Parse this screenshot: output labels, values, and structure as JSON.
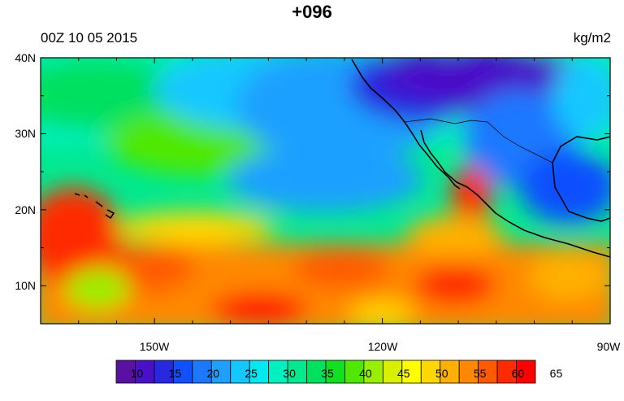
{
  "title": "+096",
  "valid_time": "00Z 10 05 2015",
  "units": "kg/m2",
  "lat_labels": [
    "40N",
    "30N",
    "20N",
    "10N"
  ],
  "lon_labels": [
    "150W",
    "120W",
    "90W"
  ],
  "colorbar": {
    "labels": [
      "10",
      "15",
      "20",
      "25",
      "30",
      "35",
      "40",
      "45",
      "50",
      "55",
      "60",
      "65"
    ],
    "colors": [
      "#5a10a0",
      "#4a10c8",
      "#2828e0",
      "#1050ff",
      "#1c78ff",
      "#1ea0ff",
      "#14c8ff",
      "#00e8f0",
      "#00f0c0",
      "#00e890",
      "#00e060",
      "#10e020",
      "#50e800",
      "#98f000",
      "#d8f000",
      "#ffff00",
      "#ffd800",
      "#ffb000",
      "#ff8800",
      "#ff5a00",
      "#ff2a00",
      "#ff0000"
    ]
  },
  "map": {
    "region": "Eastern North Pacific",
    "projection": "cylindrical equidistant",
    "lon_range": [
      -165,
      -90
    ],
    "lat_range": [
      5,
      40
    ],
    "field": "precipitable water"
  }
}
